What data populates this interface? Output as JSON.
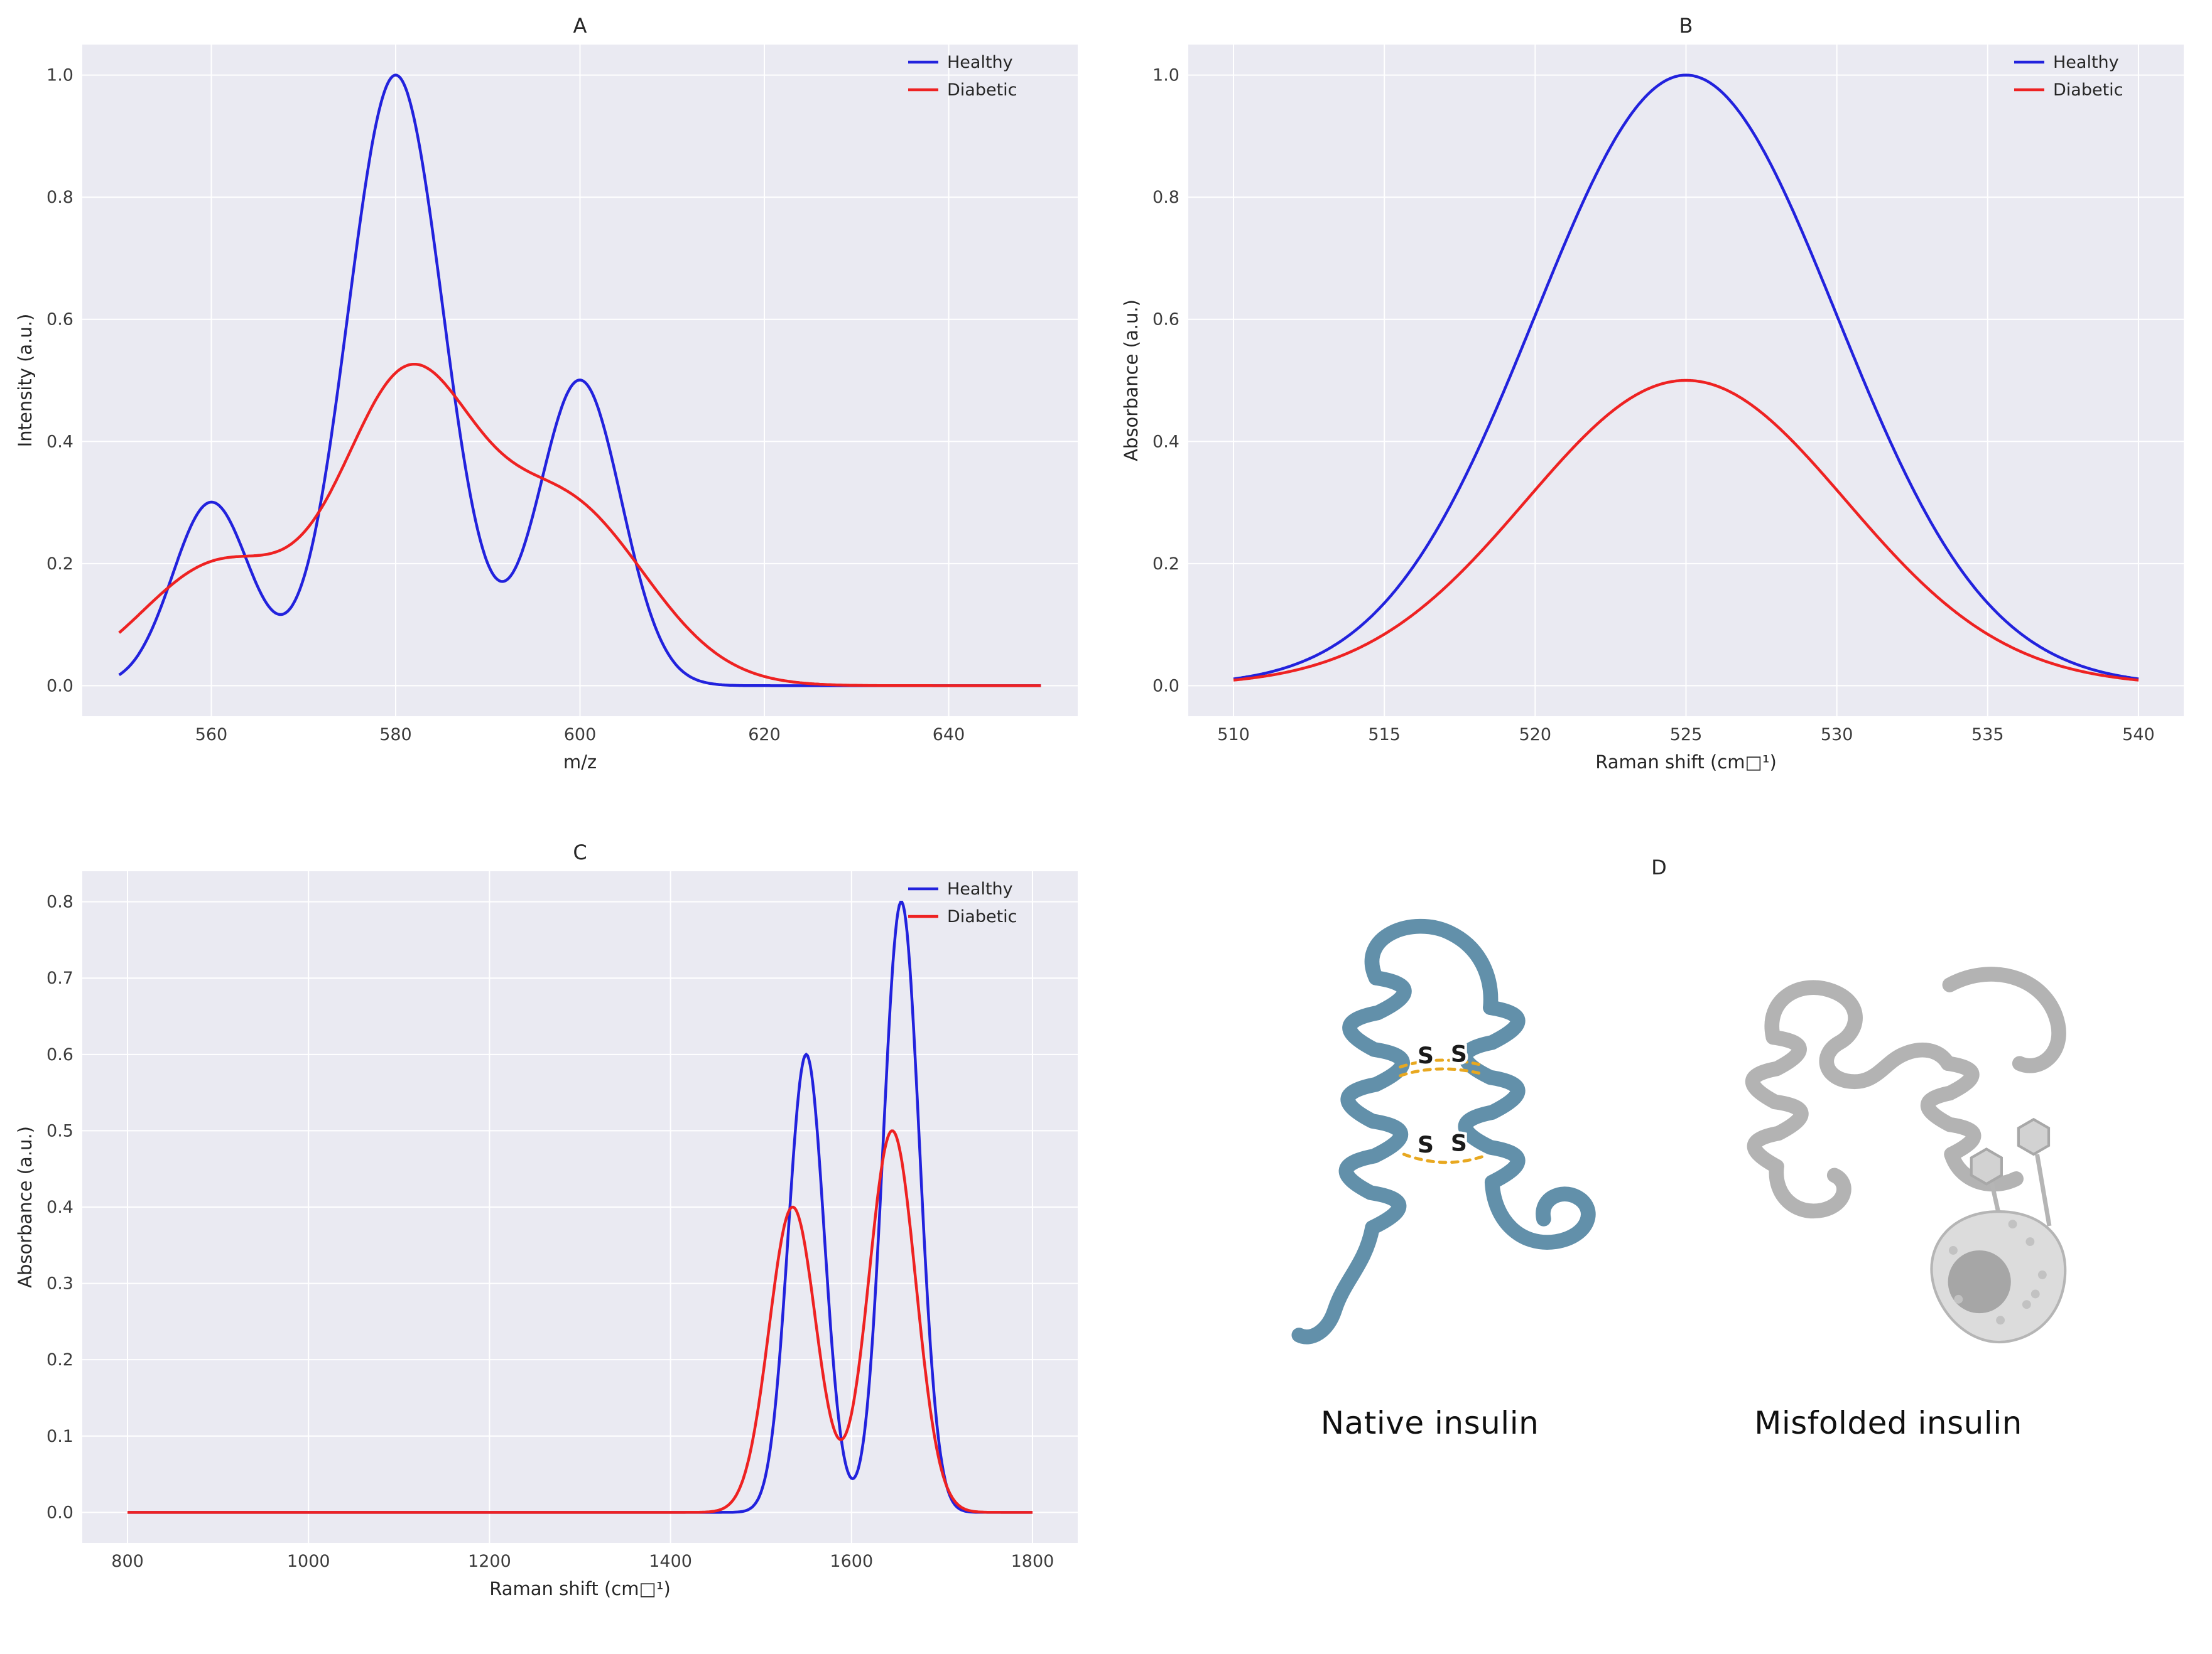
{
  "figure": {
    "colors": {
      "healthy": "#2222dd",
      "diabetic": "#ee2222",
      "panel_bg": "#eaeaf2",
      "grid": "#ffffff"
    }
  },
  "chart_data": [
    {
      "id": "A",
      "type": "line",
      "title": "A",
      "xlabel": "m/z",
      "ylabel": "Intensity (a.u.)",
      "xlim": [
        546,
        654
      ],
      "ylim": [
        -0.05,
        1.05
      ],
      "xticks": [
        560,
        580,
        600,
        620,
        640
      ],
      "yticks": [
        0.0,
        0.2,
        0.4,
        0.6,
        0.8,
        1.0
      ],
      "legend": [
        "Healthy",
        "Diabetic"
      ],
      "legend_position": "upper right",
      "grid": true,
      "series": [
        {
          "name": "Healthy",
          "color_key": "healthy",
          "model": "gaussian_sum",
          "x_range": [
            550,
            650
          ],
          "peaks": [
            {
              "center": 560,
              "amplitude": 0.3,
              "sigma": 4.2
            },
            {
              "center": 580,
              "amplitude": 1.0,
              "sigma": 5.2
            },
            {
              "center": 600,
              "amplitude": 0.5,
              "sigma": 4.5
            }
          ]
        },
        {
          "name": "Diabetic",
          "color_key": "diabetic",
          "model": "gaussian_sum",
          "x_range": [
            550,
            650
          ],
          "peaks": [
            {
              "center": 561,
              "amplitude": 0.2,
              "sigma": 8.5
            },
            {
              "center": 581,
              "amplitude": 0.46,
              "sigma": 7.0
            },
            {
              "center": 598,
              "amplitude": 0.3,
              "sigma": 9.0
            }
          ]
        }
      ]
    },
    {
      "id": "B",
      "type": "line",
      "title": "B",
      "xlabel": "Raman shift (cm□¹)",
      "ylabel": "Absorbance (a.u.)",
      "xlim": [
        508.5,
        541.5
      ],
      "ylim": [
        -0.05,
        1.05
      ],
      "xticks": [
        510,
        515,
        520,
        525,
        530,
        535,
        540
      ],
      "yticks": [
        0.0,
        0.2,
        0.4,
        0.6,
        0.8,
        1.0
      ],
      "legend": [
        "Healthy",
        "Diabetic"
      ],
      "legend_position": "upper right",
      "grid": true,
      "series": [
        {
          "name": "Healthy",
          "color_key": "healthy",
          "model": "gaussian_sum",
          "x_range": [
            510,
            540
          ],
          "peaks": [
            {
              "center": 525,
              "amplitude": 1.0,
              "sigma": 5.0
            }
          ]
        },
        {
          "name": "Diabetic",
          "color_key": "diabetic",
          "model": "gaussian_sum",
          "x_range": [
            510,
            540
          ],
          "peaks": [
            {
              "center": 525,
              "amplitude": 0.5,
              "sigma": 5.3
            }
          ]
        }
      ]
    },
    {
      "id": "C",
      "type": "line",
      "title": "C",
      "xlabel": "Raman shift (cm□¹)",
      "ylabel": "Absorbance (a.u.)",
      "xlim": [
        750,
        1850
      ],
      "ylim": [
        -0.04,
        0.84
      ],
      "xticks": [
        800,
        1000,
        1200,
        1400,
        1600,
        1800
      ],
      "yticks": [
        0.0,
        0.1,
        0.2,
        0.3,
        0.4,
        0.5,
        0.6,
        0.7,
        0.8
      ],
      "legend": [
        "Healthy",
        "Diabetic"
      ],
      "legend_position": "upper right",
      "grid": true,
      "series": [
        {
          "name": "Healthy",
          "color_key": "healthy",
          "model": "gaussian_sum",
          "x_range": [
            800,
            1800
          ],
          "peaks": [
            {
              "center": 1550,
              "amplitude": 0.6,
              "sigma": 20
            },
            {
              "center": 1655,
              "amplitude": 0.8,
              "sigma": 20
            }
          ]
        },
        {
          "name": "Diabetic",
          "color_key": "diabetic",
          "model": "gaussian_sum",
          "x_range": [
            800,
            1800
          ],
          "peaks": [
            {
              "center": 1535,
              "amplitude": 0.4,
              "sigma": 26
            },
            {
              "center": 1645,
              "amplitude": 0.5,
              "sigma": 26
            }
          ]
        }
      ]
    }
  ],
  "panel_d": {
    "title": "D",
    "captions": {
      "native": "Native insulin",
      "misfolded": "Misfolded insulin"
    },
    "bond_label": "S",
    "colors": {
      "ribbon_native": "#6290aa",
      "bond": "#e8a820",
      "s_text": "#1a1a1a",
      "ribbon_misfolded": "#b3b3b3",
      "hexagon_fill": "#d2d2d2",
      "hexagon_stroke": "#a8a8a8",
      "cell_fill": "#dcdcdc",
      "cell_stroke": "#b5b5b5",
      "nucleus": "#a6a6a6",
      "dots": "#c2c2c2"
    }
  }
}
